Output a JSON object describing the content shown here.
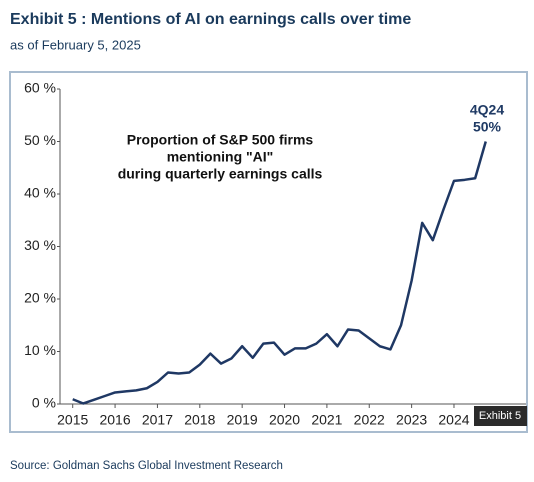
{
  "chart_data": {
    "type": "line",
    "title": "Exhibit 5 : Mentions of AI on earnings calls over time",
    "subtitle": "as of February 5, 2025",
    "source": "Source: Goldman Sachs Global Investment Research",
    "badge": "Exhibit 5",
    "annotations": [
      "Proportion of S&P 500 firms",
      "mentioning \"AI\"",
      "during quarterly earnings calls",
      "4Q24",
      "50%"
    ],
    "x": [
      2015,
      2015.25,
      2015.5,
      2015.75,
      2016,
      2016.25,
      2016.5,
      2016.75,
      2017,
      2017.25,
      2017.5,
      2017.75,
      2018,
      2018.25,
      2018.5,
      2018.75,
      2019,
      2019.25,
      2019.5,
      2019.75,
      2020,
      2020.25,
      2020.5,
      2020.75,
      2021,
      2021.25,
      2021.5,
      2021.75,
      2022,
      2022.25,
      2022.5,
      2022.75,
      2023,
      2023.25,
      2023.5,
      2023.75,
      2024,
      2024.25,
      2024.5,
      2024.75
    ],
    "series": [
      {
        "name": "Proportion of S&P 500 firms mentioning AI",
        "color": "#1f3864",
        "values": [
          0.9,
          0.1,
          0.8,
          1.5,
          2.2,
          2.4,
          2.6,
          3.0,
          4.2,
          6.0,
          5.8,
          6.0,
          7.5,
          9.6,
          7.7,
          8.7,
          11.0,
          8.8,
          11.5,
          11.7,
          9.4,
          10.6,
          10.6,
          11.5,
          13.3,
          11.0,
          14.2,
          14.0,
          12.5,
          11.0,
          10.4,
          15.0,
          23.5,
          34.5,
          31.2,
          37.0,
          42.5,
          42.7,
          43.0,
          50
        ]
      }
    ],
    "xlim": [
      2014.7,
      2025.7
    ],
    "xticks": [
      2015,
      2016,
      2017,
      2018,
      2019,
      2020,
      2021,
      2022,
      2023,
      2024
    ],
    "ylim": [
      0,
      60
    ],
    "yticks": [
      {
        "value": 0,
        "label": "0 %"
      },
      {
        "value": 10,
        "label": "10 %"
      },
      {
        "value": 20,
        "label": "20 %"
      },
      {
        "value": 30,
        "label": "30 %"
      },
      {
        "value": 40,
        "label": "40 %"
      },
      {
        "value": 50,
        "label": "50 %"
      },
      {
        "value": 60,
        "label": "60 %"
      }
    ],
    "grid": false
  }
}
